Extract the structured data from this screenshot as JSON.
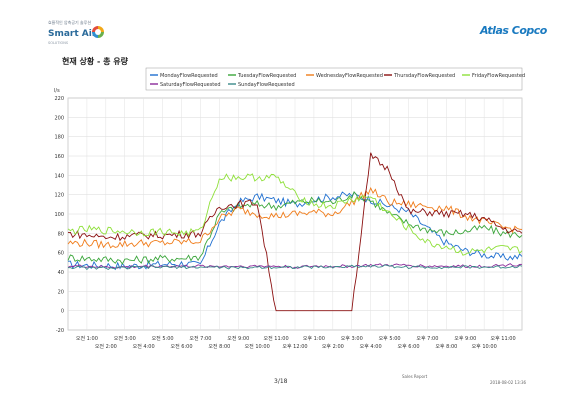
{
  "header": {
    "left_logo_top": "효율적인 압축공기 솔루션",
    "left_logo_text": "Smart Air",
    "left_logo_tag": "SOLUTIONS",
    "right_logo_text": "Atlas Copco"
  },
  "section_title": "현재 상황 - 총 유량",
  "footer": {
    "page": "3/18",
    "report": "Sales Report",
    "date": "2018-08-02 13:36"
  },
  "colors": {
    "monday": "#1f6fd0",
    "tuesday": "#3aa63a",
    "wednesday": "#f07c1a",
    "thursday": "#8b1010",
    "friday": "#8fe03a",
    "saturday": "#8a2a9a",
    "sunday": "#3a8a8a"
  },
  "chart_data": {
    "type": "line",
    "ylabel": "l/s",
    "ylim": [
      -20,
      220
    ],
    "yticks": [
      -20,
      0,
      20,
      40,
      60,
      80,
      100,
      120,
      140,
      160,
      180,
      200,
      220
    ],
    "grid": true,
    "legend": "top",
    "x": [
      "0:00",
      "1:00",
      "2:00",
      "3:00",
      "4:00",
      "5:00",
      "6:00",
      "7:00",
      "8:00",
      "9:00",
      "10:00",
      "11:00",
      "12:00",
      "13:00",
      "14:00",
      "15:00",
      "16:00",
      "17:00",
      "18:00",
      "19:00",
      "20:00",
      "21:00",
      "22:00",
      "23:00",
      "23:59"
    ],
    "xtick_labels": [
      "오전 1:00",
      "오전 2:00",
      "오전 3:00",
      "오전 4:00",
      "오전 5:00",
      "오전 6:00",
      "오전 7:00",
      "오전 8:00",
      "오전 9:00",
      "오전 10:00",
      "오전 11:00",
      "오후 12:00",
      "오후 1:00",
      "오후 2:00",
      "오후 3:00",
      "오후 4:00",
      "오후 5:00",
      "오후 6:00",
      "오후 7:00",
      "오후 8:00",
      "오후 9:00",
      "오후 10:00",
      "오후 11:00"
    ],
    "series": [
      {
        "name": "MondayFlowRequested",
        "color": "#1f6fd0",
        "values": [
          48,
          47,
          47,
          46,
          47,
          48,
          49,
          47,
          90,
          112,
          118,
          114,
          110,
          115,
          118,
          120,
          115,
          108,
          102,
          85,
          70,
          62,
          58,
          55,
          56
        ]
      },
      {
        "name": "TuesdayFlowRequested",
        "color": "#3aa63a",
        "values": [
          55,
          54,
          53,
          52,
          53,
          54,
          54,
          56,
          100,
          108,
          110,
          108,
          112,
          114,
          112,
          120,
          114,
          100,
          90,
          84,
          80,
          82,
          86,
          80,
          78
        ]
      },
      {
        "name": "WednesdayFlowRequested",
        "color": "#f07c1a",
        "values": [
          70,
          70,
          68,
          69,
          70,
          70,
          71,
          72,
          95,
          105,
          100,
          98,
          100,
          102,
          100,
          112,
          125,
          112,
          110,
          108,
          106,
          98,
          92,
          86,
          84
        ]
      },
      {
        "name": "ThursdayFlowRequested",
        "color": "#8b1010",
        "values": [
          80,
          78,
          76,
          77,
          78,
          78,
          79,
          80,
          108,
          110,
          112,
          0,
          0,
          0,
          0,
          0,
          160,
          145,
          102,
          102,
          100,
          100,
          95,
          85,
          80
        ]
      },
      {
        "name": "FridayFlowRequested",
        "color": "#8fe03a",
        "values": [
          82,
          84,
          83,
          82,
          81,
          82,
          80,
          82,
          138,
          138,
          138,
          138,
          120,
          110,
          108,
          115,
          118,
          100,
          85,
          70,
          66,
          60,
          62,
          64,
          62
        ]
      },
      {
        "name": "SaturdayFlowRequested",
        "color": "#8a2a9a",
        "values": [
          46,
          46,
          45,
          45,
          46,
          46,
          46,
          46,
          46,
          46,
          46,
          46,
          45,
          46,
          46,
          46,
          47,
          47,
          47,
          46,
          46,
          46,
          46,
          47,
          48
        ]
      },
      {
        "name": "SundayFlowRequested",
        "color": "#3a8a8a",
        "values": [
          45,
          44,
          44,
          44,
          45,
          45,
          45,
          45,
          45,
          44,
          45,
          45,
          45,
          45,
          45,
          46,
          46,
          46,
          45,
          45,
          45,
          45,
          45,
          45,
          46
        ]
      }
    ]
  }
}
